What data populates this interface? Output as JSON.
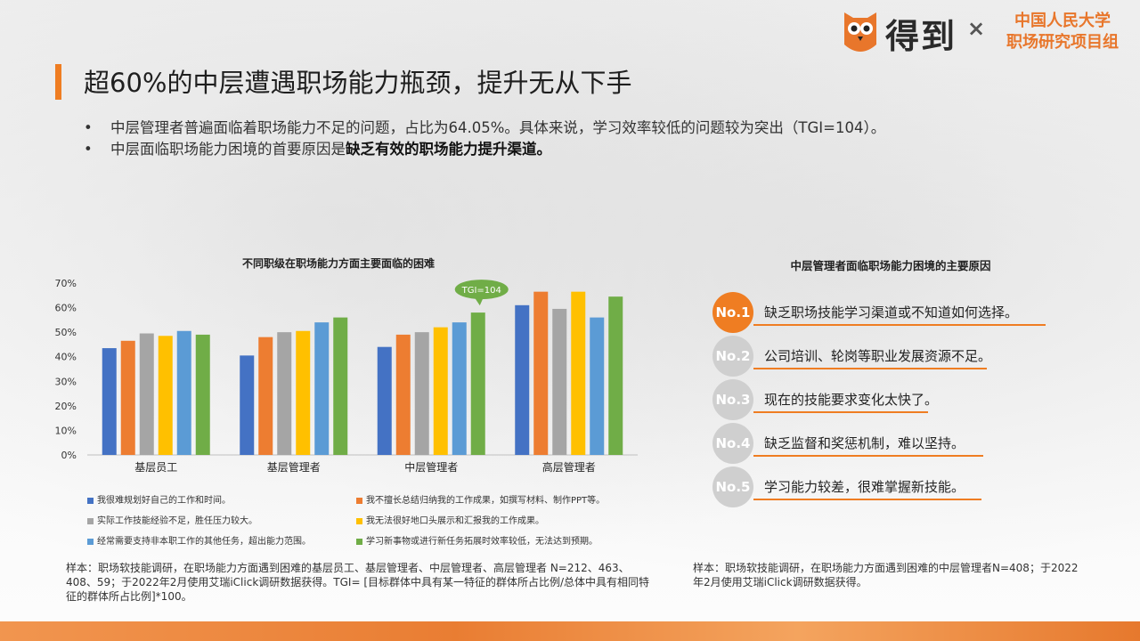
{
  "header": {
    "brand": "得到",
    "times": "×",
    "org_line1": "中国人民大学",
    "org_line2": "职场研究项目组"
  },
  "title": "超60%的中层遭遇职场能力瓶颈，提升无从下手",
  "bullets": [
    {
      "dot": "•",
      "text": "中层管理者普遍面临着职场能力不足的问题，占比为64.05%。具体来说，学习效率较低的问题较为突出（TGI=104）。",
      "bold": ""
    },
    {
      "dot": "•",
      "text": "中层面临职场能力困境的首要原因是",
      "bold": "缺乏有效的职场能力提升渠道。"
    }
  ],
  "chart_data": {
    "type": "bar",
    "title": "不同职级在职场能力方面主要面临的困难",
    "categories": [
      "基层员工",
      "基层管理者",
      "中层管理者",
      "高层管理者"
    ],
    "y_ticks": [
      "0%",
      "10%",
      "20%",
      "30%",
      "40%",
      "50%",
      "60%",
      "70%"
    ],
    "ylim": [
      0,
      70
    ],
    "annotation": "TGI=104",
    "series": [
      {
        "name": "我很难规划好自己的工作和时间。",
        "color": "#4472c4",
        "values": [
          43.5,
          40.5,
          44,
          61
        ]
      },
      {
        "name": "我不擅长总结归纳我的工作成果，如撰写材料、制作PPT等。",
        "color": "#ed7d31",
        "values": [
          46.5,
          48,
          49,
          66.5
        ]
      },
      {
        "name": "实际工作技能经验不足，胜任压力较大。",
        "color": "#a5a5a5",
        "values": [
          49.5,
          50,
          50,
          59.5
        ]
      },
      {
        "name": "我无法很好地口头展示和汇报我的工作成果。",
        "color": "#ffc000",
        "values": [
          48.5,
          50.5,
          52,
          66.5
        ]
      },
      {
        "name": "经常需要支持非本职工作的其他任务，超出能力范围。",
        "color": "#5b9bd5",
        "values": [
          50.5,
          54,
          54,
          56
        ]
      },
      {
        "name": "学习新事物或进行新任务拓展时效率较低，无法达到预期。",
        "color": "#70ad47",
        "values": [
          49,
          56,
          58,
          64.5
        ]
      }
    ]
  },
  "note_left": "样本：职场软技能调研，在职场能力方面遇到困难的基层员工、基层管理者、中层管理者、高层管理者 N=212、463、408、59；于2022年2月使用艾瑞iClick调研数据获得。TGI= [目标群体中具有某一特征的群体所占比例/总体中具有相同特征的群体所占比例]*100。",
  "reasons_title": "中层管理者面临职场能力困境的主要原因",
  "reasons": [
    {
      "badge": "No.1",
      "text": "缺乏职场技能学习渠道或不知道如何选择。",
      "color": "#ef7d22"
    },
    {
      "badge": "No.2",
      "text": "公司培训、轮岗等职业发展资源不足。",
      "color": "#cfcfcf"
    },
    {
      "badge": "No.3",
      "text": "现在的技能要求变化太快了。",
      "color": "#cfcfcf"
    },
    {
      "badge": "No.4",
      "text": "缺乏监督和奖惩机制，难以坚持。",
      "color": "#cfcfcf"
    },
    {
      "badge": "No.5",
      "text": "学习能力较差，很难掌握新技能。",
      "color": "#cfcfcf"
    }
  ],
  "note_right": "样本：职场软技能调研，在职场能力方面遇到困难的中层管理者N=408；于2022年2月使用艾瑞iClick调研数据获得。",
  "colors": {
    "accent": "#ef7d22",
    "underline": "#ef7d22"
  }
}
